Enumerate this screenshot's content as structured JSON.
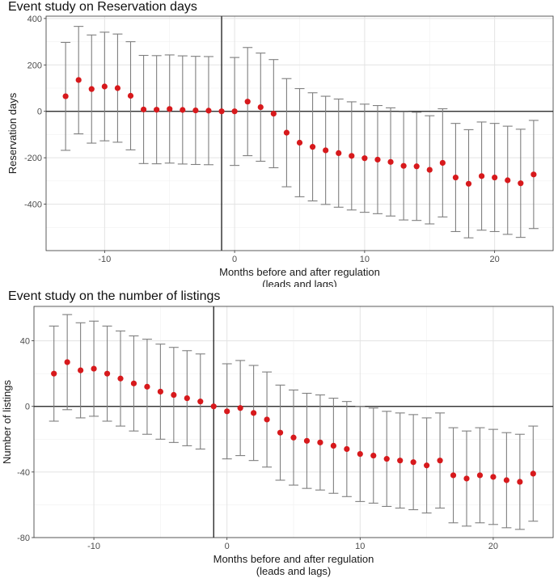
{
  "chart_data": [
    {
      "type": "scatter",
      "title": "Event study on Reservation days",
      "xlabel_lines": [
        "Months before and after regulation",
        "(leads and lags)"
      ],
      "ylabel": "Reservation days",
      "x_ticks": [
        -10,
        0,
        10,
        20
      ],
      "y_ticks": [
        -400,
        -200,
        0,
        200,
        400
      ],
      "xlim": [
        -14.5,
        24.5
      ],
      "ylim": [
        -600,
        410
      ],
      "reference_x": -1,
      "reference_y": 0,
      "grid": true,
      "legend": "none",
      "point_color": "#d7191c",
      "errorbar_color": "#7f7f7f",
      "points": [
        {
          "x": -13,
          "y": 65,
          "lo": -168,
          "hi": 297
        },
        {
          "x": -12,
          "y": 135,
          "lo": -97,
          "hi": 366
        },
        {
          "x": -11,
          "y": 96,
          "lo": -137,
          "hi": 329
        },
        {
          "x": -10,
          "y": 107,
          "lo": -127,
          "hi": 341
        },
        {
          "x": -9,
          "y": 100,
          "lo": -133,
          "hi": 333
        },
        {
          "x": -8,
          "y": 67,
          "lo": -166,
          "hi": 300
        },
        {
          "x": -7,
          "y": 8,
          "lo": -225,
          "hi": 241
        },
        {
          "x": -6,
          "y": 7,
          "lo": -226,
          "hi": 240
        },
        {
          "x": -5,
          "y": 10,
          "lo": -223,
          "hi": 243
        },
        {
          "x": -4,
          "y": 6,
          "lo": -227,
          "hi": 239
        },
        {
          "x": -3,
          "y": 4,
          "lo": -229,
          "hi": 237
        },
        {
          "x": -2,
          "y": 3,
          "lo": -230,
          "hi": 236
        },
        {
          "x": -1,
          "y": 0,
          "lo": 0,
          "hi": 0
        },
        {
          "x": 0,
          "y": 0,
          "lo": -233,
          "hi": 232
        },
        {
          "x": 1,
          "y": 42,
          "lo": -191,
          "hi": 275
        },
        {
          "x": 2,
          "y": 18,
          "lo": -215,
          "hi": 251
        },
        {
          "x": 3,
          "y": -10,
          "lo": -243,
          "hi": 223
        },
        {
          "x": 4,
          "y": -92,
          "lo": -325,
          "hi": 141
        },
        {
          "x": 5,
          "y": -135,
          "lo": -368,
          "hi": 98
        },
        {
          "x": 6,
          "y": -153,
          "lo": -386,
          "hi": 80
        },
        {
          "x": 7,
          "y": -168,
          "lo": -401,
          "hi": 65
        },
        {
          "x": 8,
          "y": -180,
          "lo": -413,
          "hi": 53
        },
        {
          "x": 9,
          "y": -192,
          "lo": -425,
          "hi": 41
        },
        {
          "x": 10,
          "y": -202,
          "lo": -435,
          "hi": 31
        },
        {
          "x": 11,
          "y": -208,
          "lo": -441,
          "hi": 25
        },
        {
          "x": 12,
          "y": -218,
          "lo": -451,
          "hi": 15
        },
        {
          "x": 13,
          "y": -235,
          "lo": -468,
          "hi": -2
        },
        {
          "x": 14,
          "y": -237,
          "lo": -470,
          "hi": -4
        },
        {
          "x": 15,
          "y": -252,
          "lo": -485,
          "hi": -19
        },
        {
          "x": 16,
          "y": -222,
          "lo": -455,
          "hi": 11
        },
        {
          "x": 17,
          "y": -285,
          "lo": -518,
          "hi": -52
        },
        {
          "x": 18,
          "y": -312,
          "lo": -545,
          "hi": -79
        },
        {
          "x": 19,
          "y": -279,
          "lo": -512,
          "hi": -46
        },
        {
          "x": 20,
          "y": -285,
          "lo": -518,
          "hi": -52
        },
        {
          "x": 21,
          "y": -297,
          "lo": -530,
          "hi": -64
        },
        {
          "x": 22,
          "y": -310,
          "lo": -543,
          "hi": -77
        },
        {
          "x": 23,
          "y": -272,
          "lo": -505,
          "hi": -39
        }
      ]
    },
    {
      "type": "scatter",
      "title": "Event study on the number of listings",
      "xlabel_lines": [
        "Months before and after regulation",
        "(leads and lags)"
      ],
      "ylabel": "Number of listings",
      "x_ticks": [
        -10,
        0,
        10,
        20
      ],
      "y_ticks": [
        -80,
        -40,
        0,
        40
      ],
      "xlim": [
        -14.5,
        24.5
      ],
      "ylim": [
        -80,
        61
      ],
      "reference_x": -1,
      "reference_y": 0,
      "grid": true,
      "legend": "none",
      "point_color": "#d7191c",
      "errorbar_color": "#7f7f7f",
      "points": [
        {
          "x": -13,
          "y": 20,
          "lo": -9,
          "hi": 49
        },
        {
          "x": -12,
          "y": 27,
          "lo": -2,
          "hi": 56
        },
        {
          "x": -11,
          "y": 22,
          "lo": -7,
          "hi": 51
        },
        {
          "x": -10,
          "y": 23,
          "lo": -6,
          "hi": 52
        },
        {
          "x": -9,
          "y": 20,
          "lo": -9,
          "hi": 49
        },
        {
          "x": -8,
          "y": 17,
          "lo": -12,
          "hi": 46
        },
        {
          "x": -7,
          "y": 14,
          "lo": -15,
          "hi": 43
        },
        {
          "x": -6,
          "y": 12,
          "lo": -17,
          "hi": 41
        },
        {
          "x": -5,
          "y": 9,
          "lo": -20,
          "hi": 38
        },
        {
          "x": -4,
          "y": 7,
          "lo": -22,
          "hi": 36
        },
        {
          "x": -3,
          "y": 5,
          "lo": -24,
          "hi": 34
        },
        {
          "x": -2,
          "y": 3,
          "lo": -26,
          "hi": 32
        },
        {
          "x": -1,
          "y": 0,
          "lo": 0,
          "hi": 0
        },
        {
          "x": 0,
          "y": -3,
          "lo": -32,
          "hi": 26
        },
        {
          "x": 1,
          "y": -1,
          "lo": -30,
          "hi": 28
        },
        {
          "x": 2,
          "y": -4,
          "lo": -33,
          "hi": 25
        },
        {
          "x": 3,
          "y": -8,
          "lo": -37,
          "hi": 21
        },
        {
          "x": 4,
          "y": -16,
          "lo": -45,
          "hi": 13
        },
        {
          "x": 5,
          "y": -19,
          "lo": -48,
          "hi": 10
        },
        {
          "x": 6,
          "y": -21,
          "lo": -50,
          "hi": 8
        },
        {
          "x": 7,
          "y": -22,
          "lo": -51,
          "hi": 7
        },
        {
          "x": 8,
          "y": -24,
          "lo": -53,
          "hi": 5
        },
        {
          "x": 9,
          "y": -26,
          "lo": -55,
          "hi": 3
        },
        {
          "x": 10,
          "y": -29,
          "lo": -58,
          "hi": 0
        },
        {
          "x": 11,
          "y": -30,
          "lo": -59,
          "hi": -1
        },
        {
          "x": 12,
          "y": -32,
          "lo": -61,
          "hi": -3
        },
        {
          "x": 13,
          "y": -33,
          "lo": -62,
          "hi": -4
        },
        {
          "x": 14,
          "y": -34,
          "lo": -63,
          "hi": -5
        },
        {
          "x": 15,
          "y": -36,
          "lo": -65,
          "hi": -7
        },
        {
          "x": 16,
          "y": -33,
          "lo": -62,
          "hi": -4
        },
        {
          "x": 17,
          "y": -42,
          "lo": -71,
          "hi": -13
        },
        {
          "x": 18,
          "y": -44,
          "lo": -73,
          "hi": -15
        },
        {
          "x": 19,
          "y": -42,
          "lo": -71,
          "hi": -13
        },
        {
          "x": 20,
          "y": -43,
          "lo": -72,
          "hi": -14
        },
        {
          "x": 21,
          "y": -45,
          "lo": -74,
          "hi": -16
        },
        {
          "x": 22,
          "y": -46,
          "lo": -75,
          "hi": -17
        },
        {
          "x": 23,
          "y": -41,
          "lo": -70,
          "hi": -12
        }
      ]
    }
  ]
}
